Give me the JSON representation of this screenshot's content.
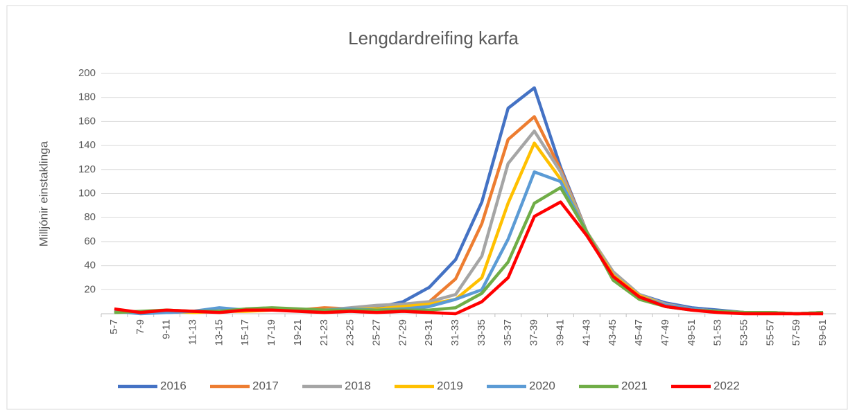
{
  "chart_data": {
    "type": "line",
    "title": "Lengdardreifing karfa",
    "y_label": "Milljónir einstaklinga",
    "categories": [
      "5-7",
      "7-9",
      "9-11",
      "11-13",
      "13-15",
      "15-17",
      "17-19",
      "19-21",
      "21-23",
      "23-25",
      "25-27",
      "27-29",
      "29-31",
      "31-33",
      "33-35",
      "35-37",
      "37-39",
      "39-41",
      "41-43",
      "43-45",
      "45-47",
      "47-49",
      "49-51",
      "51-53",
      "53-55",
      "55-57",
      "57-59",
      "59-61"
    ],
    "series": [
      {
        "name": "2016",
        "color": "#4472c4",
        "values": [
          2,
          1,
          1,
          2,
          3,
          3,
          3,
          3,
          3,
          4,
          5,
          10,
          22,
          45,
          93,
          171,
          188,
          122,
          68,
          33,
          16,
          9,
          5,
          3,
          1,
          1,
          0,
          1
        ]
      },
      {
        "name": "2017",
        "color": "#ed7d31",
        "values": [
          2,
          1,
          2,
          2,
          2,
          3,
          3,
          3,
          5,
          4,
          4,
          6,
          10,
          29,
          75,
          145,
          164,
          120,
          68,
          33,
          15,
          8,
          4,
          2,
          1,
          1,
          0,
          1
        ]
      },
      {
        "name": "2018",
        "color": "#a5a5a5",
        "values": [
          1,
          1,
          2,
          2,
          3,
          3,
          3,
          3,
          3,
          5,
          7,
          8,
          10,
          16,
          48,
          125,
          152,
          118,
          68,
          35,
          16,
          8,
          4,
          2,
          1,
          1,
          0,
          1
        ]
      },
      {
        "name": "2019",
        "color": "#ffc000",
        "values": [
          2,
          1,
          2,
          1,
          2,
          2,
          3,
          3,
          3,
          4,
          4,
          6,
          8,
          12,
          30,
          92,
          142,
          112,
          68,
          32,
          15,
          7,
          4,
          2,
          1,
          1,
          0,
          1
        ]
      },
      {
        "name": "2020",
        "color": "#5b9bd5",
        "values": [
          2,
          0,
          1,
          2,
          5,
          3,
          3,
          3,
          3,
          4,
          3,
          4,
          6,
          12,
          20,
          62,
          118,
          110,
          68,
          30,
          14,
          7,
          4,
          2,
          1,
          1,
          0,
          1
        ]
      },
      {
        "name": "2021",
        "color": "#70ad47",
        "values": [
          1,
          2,
          3,
          2,
          2,
          4,
          5,
          4,
          3,
          3,
          3,
          3,
          3,
          5,
          17,
          43,
          92,
          105,
          68,
          28,
          12,
          6,
          3,
          2,
          1,
          1,
          0,
          1
        ]
      },
      {
        "name": "2022",
        "color": "#ff0000",
        "values": [
          4,
          1,
          3,
          2,
          1,
          3,
          3,
          2,
          1,
          2,
          1,
          2,
          1,
          0,
          10,
          30,
          81,
          93,
          65,
          31,
          14,
          6,
          3,
          1,
          0,
          0,
          0,
          0
        ]
      }
    ],
    "ylim": [
      0,
      200
    ],
    "yticks": [
      20,
      40,
      60,
      80,
      100,
      120,
      140,
      160,
      180,
      200
    ],
    "grid": true,
    "legend": "bottom"
  }
}
